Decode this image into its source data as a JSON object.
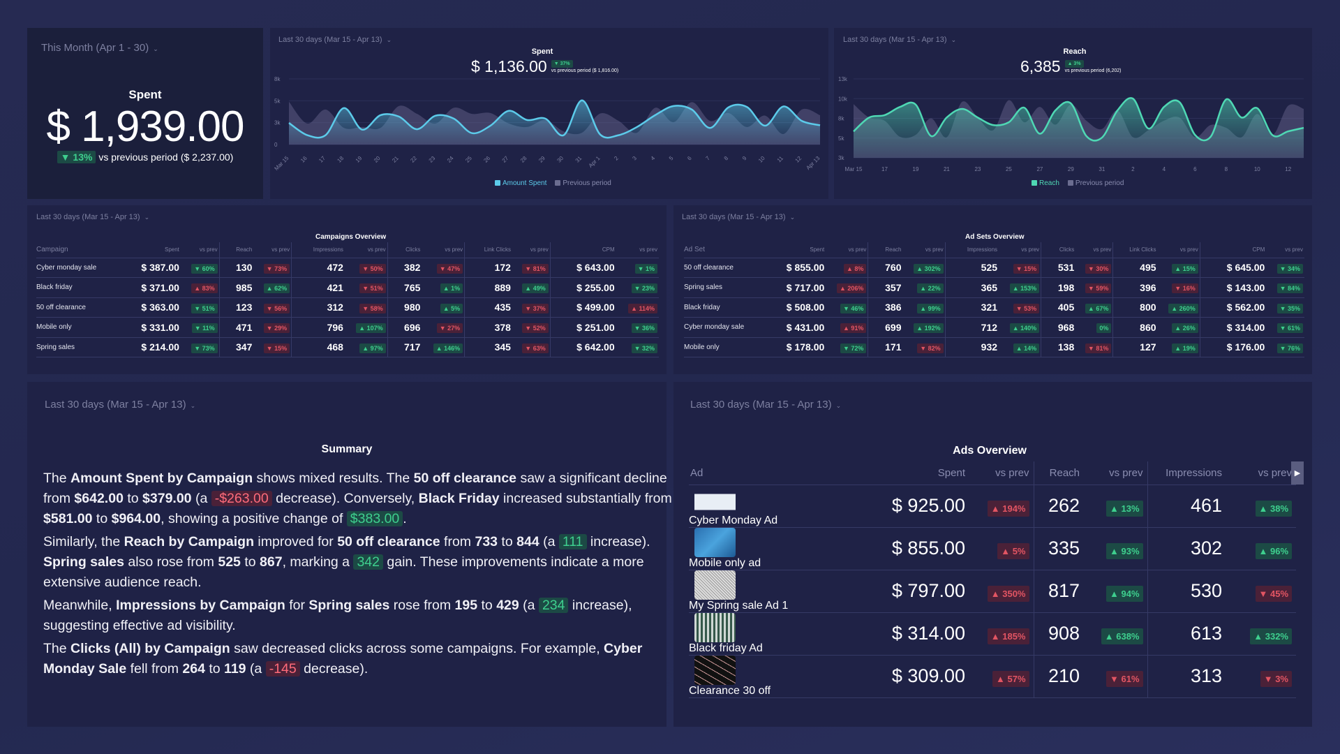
{
  "kpi": {
    "period": "This Month (Apr 1 - 30)",
    "label": "Spent",
    "value": "$ 1,939.00",
    "change": "▼ 13%",
    "change_dir": "down-good",
    "compare": "vs previous period ($ 2,237.00)"
  },
  "colors": {
    "spent_line": "#5ccbea",
    "reach_line": "#4fd8b4",
    "previous_area": "#5a5a80",
    "good_bg": "#1c4a45",
    "good_fg": "#3ecf8e",
    "bad_bg": "#4a2138",
    "bad_fg": "#e25563"
  },
  "chart_data": [
    {
      "type": "area",
      "title": "Spent",
      "period": "Last 30 days (Mar 15 - Apr 13)",
      "total": "$ 1,136.00",
      "change": "▼ 37%",
      "compare": "vs previous period ($ 1,816.00)",
      "x": [
        "Mar 15",
        "16",
        "17",
        "18",
        "19",
        "20",
        "21",
        "22",
        "23",
        "24",
        "25",
        "26",
        "27",
        "28",
        "29",
        "30",
        "31",
        "Apr 1",
        "2",
        "3",
        "4",
        "5",
        "6",
        "7",
        "8",
        "9",
        "10",
        "11",
        "12",
        "Apr 13"
      ],
      "yticks": [
        "0",
        "3k",
        "5k",
        "8k"
      ],
      "ylim": [
        0,
        7500
      ],
      "grid": true,
      "legend": "bottom",
      "series": [
        {
          "name": "Amount Spent",
          "values": [
            2470,
            1070,
            1070,
            4170,
            1700,
            3360,
            3200,
            1750,
            3300,
            2960,
            1300,
            2150,
            3850,
            2800,
            2960,
            1070,
            5050,
            1130,
            1070,
            2000,
            3360,
            4400,
            4000,
            1900,
            4250,
            4300,
            2150,
            4350,
            2700,
            2200
          ]
        },
        {
          "name": "Previous period",
          "values": [
            4900,
            2400,
            4000,
            1900,
            2000,
            1900,
            4400,
            3500,
            2400,
            4200,
            3500,
            3600,
            2400,
            2000,
            2800,
            1500,
            1350,
            3550,
            2700,
            1350,
            4200,
            2550,
            4850,
            2700,
            3600,
            2000,
            3300,
            1200,
            4000,
            3350
          ]
        }
      ]
    },
    {
      "type": "area",
      "title": "Reach",
      "period": "Last 30 days (Mar 15 - Apr 13)",
      "total": "6,385",
      "change": "▲ 3%",
      "compare": "vs previous period (6,202)",
      "x": [
        "Mar 15",
        "16",
        "17",
        "18",
        "19",
        "20",
        "21",
        "22",
        "23",
        "24",
        "25",
        "26",
        "27",
        "28",
        "29",
        "30",
        "31",
        "1",
        "2",
        "3",
        "4",
        "5",
        "6",
        "7",
        "8",
        "9",
        "10",
        "11",
        "12",
        "13"
      ],
      "xtick_every": 2,
      "yticks": [
        "3k",
        "5k",
        "8k",
        "10k",
        "13k"
      ],
      "ylim": [
        3000,
        13000
      ],
      "grid": true,
      "legend": "bottom",
      "series": [
        {
          "name": "Reach",
          "values": [
            6340,
            8100,
            8400,
            9450,
            9750,
            5750,
            8100,
            9200,
            8100,
            7150,
            7500,
            9350,
            6050,
            9000,
            9900,
            5750,
            5550,
            9000,
            10500,
            6700,
            9450,
            10050,
            5900,
            5650,
            10400,
            8100,
            9300,
            5850,
            6350,
            6800
          ]
        },
        {
          "name": "Previous period",
          "values": [
            9800,
            8100,
            7700,
            5650,
            5900,
            8000,
            5600,
            10100,
            8100,
            6500,
            10300,
            7500,
            9450,
            7200,
            9750,
            7700,
            6650,
            9000,
            5600,
            6500,
            7700,
            8100,
            5600,
            7150,
            6800,
            5600,
            8550,
            5900,
            9600,
            9200
          ]
        }
      ]
    }
  ],
  "campaigns": {
    "period": "Last 30 days (Mar 15 - Apr 13)",
    "title": "Campaigns Overview",
    "headers": [
      "Campaign",
      "Spent",
      "vs prev",
      "Reach",
      "vs prev",
      "Impressions",
      "vs prev",
      "Clicks",
      "vs prev",
      "Link Clicks",
      "vs prev",
      "CPM",
      "vs prev"
    ],
    "rows": [
      [
        "Cyber monday sale",
        "$ 387.00",
        [
          "▼ 60%",
          "down-good"
        ],
        "130",
        [
          "▼ 73%",
          "down-bad"
        ],
        "472",
        [
          "▼ 50%",
          "down-bad"
        ],
        "382",
        [
          "▼ 47%",
          "down-bad"
        ],
        "172",
        [
          "▼ 81%",
          "down-bad"
        ],
        "$ 643.00",
        [
          "▼ 1%",
          "down-good"
        ]
      ],
      [
        "Black friday",
        "$ 371.00",
        [
          "▲ 83%",
          "up-bad"
        ],
        "985",
        [
          "▲ 62%",
          "up-good"
        ],
        "421",
        [
          "▼ 51%",
          "down-bad"
        ],
        "765",
        [
          "▲ 1%",
          "up-good"
        ],
        "889",
        [
          "▲ 49%",
          "up-good"
        ],
        "$ 255.00",
        [
          "▼ 23%",
          "down-good"
        ]
      ],
      [
        "50 off clearance",
        "$ 363.00",
        [
          "▼ 51%",
          "down-good"
        ],
        "123",
        [
          "▼ 56%",
          "down-bad"
        ],
        "312",
        [
          "▼ 58%",
          "down-bad"
        ],
        "980",
        [
          "▲ 5%",
          "up-good"
        ],
        "435",
        [
          "▼ 37%",
          "down-bad"
        ],
        "$ 499.00",
        [
          "▲ 114%",
          "up-bad"
        ]
      ],
      [
        "Mobile only",
        "$ 331.00",
        [
          "▼ 11%",
          "down-good"
        ],
        "471",
        [
          "▼ 29%",
          "down-bad"
        ],
        "796",
        [
          "▲ 107%",
          "up-good"
        ],
        "696",
        [
          "▼ 27%",
          "down-bad"
        ],
        "378",
        [
          "▼ 52%",
          "down-bad"
        ],
        "$ 251.00",
        [
          "▼ 36%",
          "down-good"
        ]
      ],
      [
        "Spring sales",
        "$ 214.00",
        [
          "▼ 73%",
          "down-good"
        ],
        "347",
        [
          "▼ 15%",
          "down-bad"
        ],
        "468",
        [
          "▲ 97%",
          "up-good"
        ],
        "717",
        [
          "▲ 146%",
          "up-good"
        ],
        "345",
        [
          "▼ 63%",
          "down-bad"
        ],
        "$ 642.00",
        [
          "▼ 32%",
          "down-good"
        ]
      ]
    ]
  },
  "adsets": {
    "period": "Last 30 days (Mar 15 - Apr 13)",
    "title": "Ad Sets Overview",
    "headers": [
      "Ad Set",
      "Spent",
      "vs prev",
      "Reach",
      "vs prev",
      "Impressions",
      "vs prev",
      "Clicks",
      "vs prev",
      "Link Clicks",
      "vs prev",
      "CPM",
      "vs prev"
    ],
    "rows": [
      [
        "50 off clearance",
        "$ 855.00",
        [
          "▲ 8%",
          "up-bad"
        ],
        "760",
        [
          "▲ 302%",
          "up-good"
        ],
        "525",
        [
          "▼ 15%",
          "down-bad"
        ],
        "531",
        [
          "▼ 30%",
          "down-bad"
        ],
        "495",
        [
          "▲ 15%",
          "up-good"
        ],
        "$ 645.00",
        [
          "▼ 34%",
          "down-good"
        ]
      ],
      [
        "Spring sales",
        "$ 717.00",
        [
          "▲ 206%",
          "up-bad"
        ],
        "357",
        [
          "▲ 22%",
          "up-good"
        ],
        "365",
        [
          "▲ 153%",
          "up-good"
        ],
        "198",
        [
          "▼ 59%",
          "down-bad"
        ],
        "396",
        [
          "▼ 16%",
          "down-bad"
        ],
        "$ 143.00",
        [
          "▼ 84%",
          "down-good"
        ]
      ],
      [
        "Black friday",
        "$ 508.00",
        [
          "▼ 46%",
          "down-good"
        ],
        "386",
        [
          "▲ 99%",
          "up-good"
        ],
        "321",
        [
          "▼ 53%",
          "down-bad"
        ],
        "405",
        [
          "▲ 67%",
          "up-good"
        ],
        "800",
        [
          "▲ 260%",
          "up-good"
        ],
        "$ 562.00",
        [
          "▼ 35%",
          "down-good"
        ]
      ],
      [
        "Cyber monday sale",
        "$ 431.00",
        [
          "▲ 91%",
          "up-bad"
        ],
        "699",
        [
          "▲ 192%",
          "up-good"
        ],
        "712",
        [
          "▲ 140%",
          "up-good"
        ],
        "968",
        [
          "0%",
          "flat"
        ],
        "860",
        [
          "▲ 26%",
          "up-good"
        ],
        "$ 314.00",
        [
          "▼ 61%",
          "down-good"
        ]
      ],
      [
        "Mobile only",
        "$ 178.00",
        [
          "▼ 72%",
          "down-good"
        ],
        "171",
        [
          "▼ 82%",
          "down-bad"
        ],
        "932",
        [
          "▲ 14%",
          "up-good"
        ],
        "138",
        [
          "▼ 81%",
          "down-bad"
        ],
        "127",
        [
          "▲ 19%",
          "up-good"
        ],
        "$ 176.00",
        [
          "▼ 76%",
          "down-good"
        ]
      ]
    ]
  },
  "summary": {
    "period": "Last 30 days (Mar 15 - Apr 13)",
    "title": "Summary",
    "paragraphs": [
      [
        [
          "The "
        ],
        [
          "Amount Spent by Campaign",
          "b"
        ],
        [
          " shows mixed results. The "
        ],
        [
          "50 off clearance",
          "b"
        ],
        [
          " saw a significant decline from "
        ],
        [
          "$642.00",
          "b"
        ],
        [
          " to "
        ],
        [
          "$379.00",
          "b"
        ],
        [
          " (a "
        ],
        [
          "-$263.00",
          "neg"
        ],
        [
          " decrease). Conversely, "
        ],
        [
          "Black Friday",
          "b"
        ],
        [
          " increased substantially from "
        ],
        [
          "$581.00",
          "b"
        ],
        [
          " to "
        ],
        [
          "$964.00",
          "b"
        ],
        [
          ", showing a positive change of "
        ],
        [
          "$383.00",
          "pos"
        ],
        [
          "."
        ]
      ],
      [
        [
          "Similarly, the "
        ],
        [
          "Reach by Campaign",
          "b"
        ],
        [
          " improved for "
        ],
        [
          "50 off clearance",
          "b"
        ],
        [
          " from "
        ],
        [
          "733",
          "b"
        ],
        [
          " to "
        ],
        [
          "844",
          "b"
        ],
        [
          " (a "
        ],
        [
          "111",
          "pos"
        ],
        [
          " increase). "
        ],
        [
          "Spring sales",
          "b"
        ],
        [
          " also rose from "
        ],
        [
          "525",
          "b"
        ],
        [
          " to "
        ],
        [
          "867",
          "b"
        ],
        [
          ", marking a "
        ],
        [
          "342",
          "pos"
        ],
        [
          " gain. These improvements indicate a more extensive audience reach."
        ]
      ],
      [
        [
          "Meanwhile, "
        ],
        [
          "Impressions by Campaign",
          "b"
        ],
        [
          " for "
        ],
        [
          "Spring sales",
          "b"
        ],
        [
          " rose from "
        ],
        [
          "195",
          "b"
        ],
        [
          " to "
        ],
        [
          "429",
          "b"
        ],
        [
          " (a "
        ],
        [
          "234",
          "pos"
        ],
        [
          " increase), suggesting effective ad visibility."
        ]
      ],
      [
        [
          "The "
        ],
        [
          "Clicks (All) by Campaign",
          "b"
        ],
        [
          " saw decreased clicks across some campaigns. For example, "
        ],
        [
          "Cyber Monday Sale",
          "b"
        ],
        [
          " fell from "
        ],
        [
          "264",
          "b"
        ],
        [
          " to "
        ],
        [
          "119",
          "b"
        ],
        [
          " (a "
        ],
        [
          "-145",
          "neg"
        ],
        [
          " decrease)."
        ]
      ]
    ]
  },
  "ads": {
    "period": "Last 30 days (Mar 15 - Apr 13)",
    "title": "Ads Overview",
    "headers": [
      "Ad",
      "Spent",
      "vs prev",
      "Reach",
      "vs prev",
      "Impressions",
      "vs prev"
    ],
    "rows": [
      {
        "name": "Cyber Monday Ad",
        "thumb": "snow",
        "spent": "$ 925.00",
        "spent_chg": [
          "▲ 194%",
          "up-bad"
        ],
        "reach": "262",
        "reach_chg": [
          "▲ 13%",
          "up-good"
        ],
        "imp": "461",
        "imp_chg": [
          "▲ 38%",
          "up-good"
        ]
      },
      {
        "name": "Mobile only ad",
        "thumb": "water",
        "spent": "$ 855.00",
        "spent_chg": [
          "▲ 5%",
          "up-bad"
        ],
        "reach": "335",
        "reach_chg": [
          "▲ 93%",
          "up-good"
        ],
        "imp": "302",
        "imp_chg": [
          "▲ 96%",
          "up-good"
        ]
      },
      {
        "name": "My Spring sale Ad 1",
        "thumb": "sketch",
        "spent": "$ 797.00",
        "spent_chg": [
          "▲ 350%",
          "up-bad"
        ],
        "reach": "817",
        "reach_chg": [
          "▲ 94%",
          "up-good"
        ],
        "imp": "530",
        "imp_chg": [
          "▼ 45%",
          "down-bad"
        ]
      },
      {
        "name": "Black friday Ad",
        "thumb": "forest",
        "spent": "$ 314.00",
        "spent_chg": [
          "▲ 185%",
          "up-bad"
        ],
        "reach": "908",
        "reach_chg": [
          "▲ 638%",
          "up-good"
        ],
        "imp": "613",
        "imp_chg": [
          "▲ 332%",
          "up-good"
        ]
      },
      {
        "name": "Clearance 30 off",
        "thumb": "dark",
        "spent": "$ 309.00",
        "spent_chg": [
          "▲ 57%",
          "up-bad"
        ],
        "reach": "210",
        "reach_chg": [
          "▼ 61%",
          "down-bad"
        ],
        "imp": "313",
        "imp_chg": [
          "▼ 3%",
          "down-bad"
        ]
      }
    ]
  }
}
